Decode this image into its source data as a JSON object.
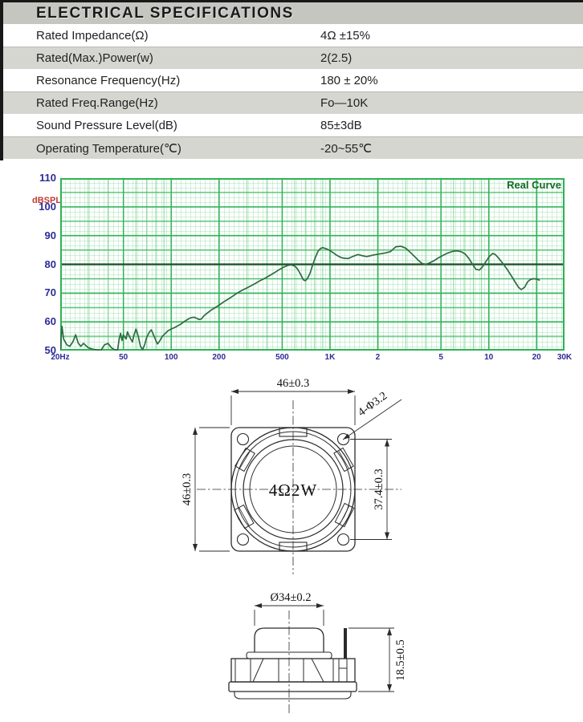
{
  "header": {
    "title": "ELECTRICAL SPECIFICATIONS"
  },
  "spec_table": {
    "rows": [
      {
        "label": "Rated Impedance(Ω)",
        "value": "4Ω ±15%"
      },
      {
        "label": "Rated(Max.)Power(w)",
        "value": "2(2.5)"
      },
      {
        "label": "Resonance Frequency(Hz)",
        "value": "180 ± 20%"
      },
      {
        "label": "Rated Freq.Range(Hz)",
        "value": "Fo—10K"
      },
      {
        "label": "Sound Pressure Level(dB)",
        "value": "85±3dB"
      },
      {
        "label": "Operating Temperature(℃)",
        "value": "-20~55℃"
      }
    ]
  },
  "chart_data": {
    "type": "line",
    "title": "Real Curve",
    "ylabel": "dBSPL",
    "x_scale": "log",
    "x_range": [
      20,
      30000
    ],
    "y_range": [
      50,
      110
    ],
    "grid": true,
    "legend_position": "top-right",
    "y_ticks": [
      110,
      100,
      90,
      80,
      70,
      60,
      50
    ],
    "emphasis_y": 80,
    "x_ticks": [
      {
        "label": "20Hz",
        "f": 20
      },
      {
        "label": "50",
        "f": 50
      },
      {
        "label": "100",
        "f": 100
      },
      {
        "label": "200",
        "f": 200
      },
      {
        "label": "500",
        "f": 500
      },
      {
        "label": "1K",
        "f": 1000
      },
      {
        "label": "2",
        "f": 2000
      },
      {
        "label": "5",
        "f": 5000
      },
      {
        "label": "10",
        "f": 10000
      },
      {
        "label": "20",
        "f": 20000
      },
      {
        "label": "30K",
        "f": 30000
      }
    ],
    "x_minor": [
      30,
      40,
      60,
      70,
      80,
      90,
      300,
      400,
      600,
      700,
      800,
      900,
      3000,
      4000,
      6000,
      7000,
      8000,
      9000
    ],
    "colors": {
      "curve": "#2d6b40",
      "grid_major": "#2fb257",
      "grid_minor": "#8fd6a0",
      "grid_emphasis": "#1d4f28",
      "axis_text": "#2b2b96",
      "unit_text": "#c23b32",
      "legend_text": "#156a28"
    },
    "series": [
      {
        "name": "Real Curve",
        "points": [
          [
            20,
            50
          ],
          [
            20.5,
            58.5
          ],
          [
            21,
            54
          ],
          [
            22,
            52
          ],
          [
            23,
            51.5
          ],
          [
            24,
            53
          ],
          [
            25,
            55.5
          ],
          [
            26,
            52.5
          ],
          [
            27,
            51.5
          ],
          [
            28,
            52.5
          ],
          [
            30,
            51
          ],
          [
            32,
            50.5
          ],
          [
            34,
            50.2
          ],
          [
            36,
            50
          ],
          [
            38,
            52
          ],
          [
            40,
            52.5
          ],
          [
            42,
            51
          ],
          [
            44,
            50.3
          ],
          [
            46,
            50.2
          ],
          [
            47,
            54
          ],
          [
            48,
            56
          ],
          [
            49,
            53.5
          ],
          [
            50,
            55.5
          ],
          [
            52,
            54
          ],
          [
            53,
            56.5
          ],
          [
            55,
            54.5
          ],
          [
            57,
            53
          ],
          [
            58,
            55
          ],
          [
            60,
            57.5
          ],
          [
            62,
            55
          ],
          [
            64,
            51.5
          ],
          [
            66,
            50.3
          ],
          [
            68,
            52
          ],
          [
            70,
            54.5
          ],
          [
            73,
            56.5
          ],
          [
            75,
            57.2
          ],
          [
            78,
            55
          ],
          [
            80,
            53.5
          ],
          [
            82,
            52.3
          ],
          [
            85,
            53.5
          ],
          [
            88,
            55
          ],
          [
            90,
            55.5
          ],
          [
            95,
            56.8
          ],
          [
            100,
            57.5
          ],
          [
            105,
            58
          ],
          [
            110,
            58.6
          ],
          [
            115,
            59.2
          ],
          [
            120,
            60
          ],
          [
            125,
            60.6
          ],
          [
            130,
            61.2
          ],
          [
            135,
            61.5
          ],
          [
            140,
            61.6
          ],
          [
            145,
            61.2
          ],
          [
            150,
            60.8
          ],
          [
            155,
            61
          ],
          [
            160,
            62
          ],
          [
            170,
            63.2
          ],
          [
            180,
            64.2
          ],
          [
            190,
            65
          ],
          [
            200,
            65.8
          ],
          [
            215,
            67
          ],
          [
            230,
            68
          ],
          [
            245,
            69
          ],
          [
            260,
            70
          ],
          [
            280,
            71
          ],
          [
            300,
            71.8
          ],
          [
            320,
            72.6
          ],
          [
            340,
            73.4
          ],
          [
            360,
            74.2
          ],
          [
            390,
            75.2
          ],
          [
            420,
            76.2
          ],
          [
            450,
            77.2
          ],
          [
            480,
            78.2
          ],
          [
            510,
            79
          ],
          [
            540,
            79.6
          ],
          [
            570,
            79.8
          ],
          [
            600,
            79.4
          ],
          [
            620,
            78.6
          ],
          [
            640,
            77.4
          ],
          [
            660,
            76
          ],
          [
            680,
            74.6
          ],
          [
            700,
            74.3
          ],
          [
            720,
            75
          ],
          [
            750,
            77
          ],
          [
            780,
            80
          ],
          [
            810,
            82.5
          ],
          [
            840,
            84.5
          ],
          [
            870,
            85.5
          ],
          [
            900,
            85.8
          ],
          [
            950,
            85.4
          ],
          [
            1000,
            84.8
          ],
          [
            1050,
            84
          ],
          [
            1100,
            83.2
          ],
          [
            1150,
            82.6
          ],
          [
            1200,
            82.2
          ],
          [
            1300,
            82
          ],
          [
            1400,
            82.8
          ],
          [
            1500,
            83.4
          ],
          [
            1600,
            83
          ],
          [
            1700,
            82.7
          ],
          [
            1800,
            83
          ],
          [
            1900,
            83.3
          ],
          [
            2000,
            83.5
          ],
          [
            2200,
            83.9
          ],
          [
            2400,
            84.4
          ],
          [
            2500,
            85.3
          ],
          [
            2600,
            86.1
          ],
          [
            2800,
            86.3
          ],
          [
            3000,
            85.6
          ],
          [
            3200,
            84.2
          ],
          [
            3400,
            82.8
          ],
          [
            3600,
            81.4
          ],
          [
            3800,
            80.3
          ],
          [
            4000,
            80
          ],
          [
            4200,
            80.4
          ],
          [
            4500,
            81.2
          ],
          [
            4800,
            82.2
          ],
          [
            5100,
            83
          ],
          [
            5500,
            83.9
          ],
          [
            5900,
            84.5
          ],
          [
            6300,
            84.7
          ],
          [
            6700,
            84.4
          ],
          [
            7100,
            83.6
          ],
          [
            7500,
            82
          ],
          [
            7900,
            80
          ],
          [
            8300,
            78.3
          ],
          [
            8700,
            78
          ],
          [
            9100,
            79
          ],
          [
            9600,
            81
          ],
          [
            10100,
            82.8
          ],
          [
            10600,
            83.8
          ],
          [
            11000,
            83.4
          ],
          [
            11600,
            82
          ],
          [
            12300,
            80.2
          ],
          [
            13000,
            78.4
          ],
          [
            13800,
            76.2
          ],
          [
            14600,
            74
          ],
          [
            15400,
            72
          ],
          [
            16000,
            71.2
          ],
          [
            16800,
            72
          ],
          [
            17600,
            74
          ],
          [
            18400,
            74.8
          ],
          [
            19200,
            75
          ],
          [
            20000,
            74.9
          ],
          [
            20800,
            74.5
          ]
        ]
      }
    ]
  },
  "drawings": {
    "front_view": {
      "width_dim": "46±0.3",
      "height_dim": "46±0.3",
      "holes_dim": "4-Φ3.2",
      "hole_spacing_dim": "37.4±0.3",
      "center_label": "4Ω2W"
    },
    "side_view": {
      "diameter_dim": "Ø34±0.2",
      "height_dim": "18.5±0.5"
    }
  }
}
